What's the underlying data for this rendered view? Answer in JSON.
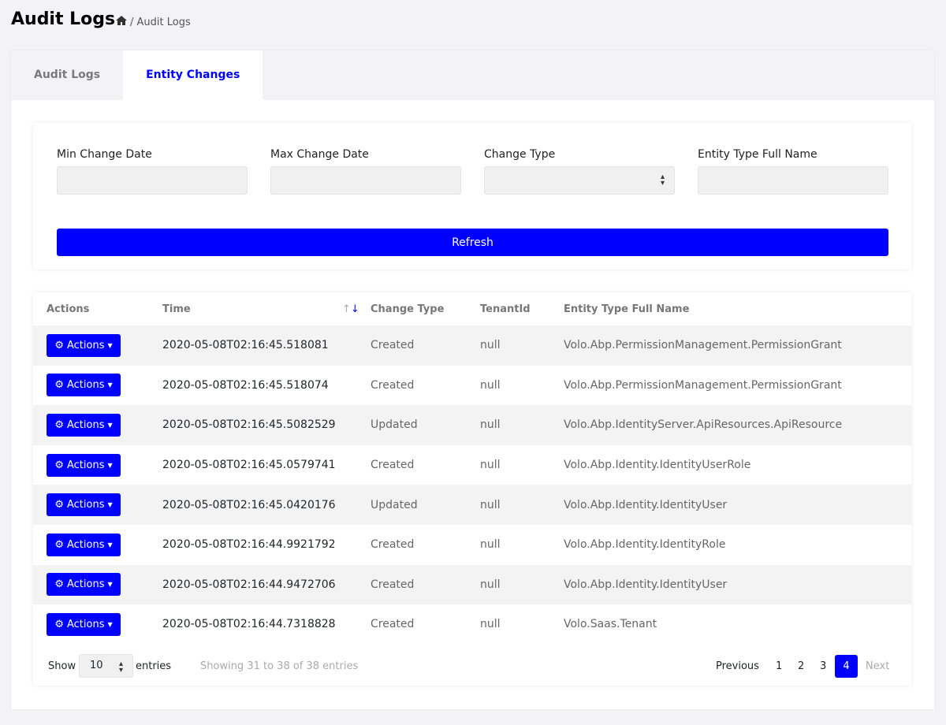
{
  "header": {
    "title": "Audit Logs",
    "breadcrumb": "/ Audit Logs"
  },
  "tabs": [
    {
      "label": "Audit Logs",
      "active": false
    },
    {
      "label": "Entity Changes",
      "active": true
    }
  ],
  "filters": {
    "min_date": "Min Change Date",
    "max_date": "Max Change Date",
    "change_type": "Change Type",
    "entity_type": "Entity Type Full Name",
    "refresh": "Refresh"
  },
  "table": {
    "columns": [
      "Actions",
      "Time",
      "Change Type",
      "TenantId",
      "Entity Type Full Name"
    ],
    "action_label": "Actions",
    "rows": [
      {
        "time": "2020-05-08T02:16:45.518081",
        "type": "Created",
        "tenant": "null",
        "entity": "Volo.Abp.PermissionManagement.PermissionGrant"
      },
      {
        "time": "2020-05-08T02:16:45.518074",
        "type": "Created",
        "tenant": "null",
        "entity": "Volo.Abp.PermissionManagement.PermissionGrant"
      },
      {
        "time": "2020-05-08T02:16:45.5082529",
        "type": "Updated",
        "tenant": "null",
        "entity": "Volo.Abp.IdentityServer.ApiResources.ApiResource"
      },
      {
        "time": "2020-05-08T02:16:45.0579741",
        "type": "Created",
        "tenant": "null",
        "entity": "Volo.Abp.Identity.IdentityUserRole"
      },
      {
        "time": "2020-05-08T02:16:45.0420176",
        "type": "Updated",
        "tenant": "null",
        "entity": "Volo.Abp.Identity.IdentityUser"
      },
      {
        "time": "2020-05-08T02:16:44.9921792",
        "type": "Created",
        "tenant": "null",
        "entity": "Volo.Abp.Identity.IdentityRole"
      },
      {
        "time": "2020-05-08T02:16:44.9472706",
        "type": "Created",
        "tenant": "null",
        "entity": "Volo.Abp.Identity.IdentityUser"
      },
      {
        "time": "2020-05-08T02:16:44.7318828",
        "type": "Created",
        "tenant": "null",
        "entity": "Volo.Saas.Tenant"
      }
    ]
  },
  "footer": {
    "show": "Show",
    "page_size": "10",
    "entries": "entries",
    "info": "Showing 31 to 38 of 38 entries",
    "previous": "Previous",
    "pages": [
      "1",
      "2",
      "3",
      "4"
    ],
    "current_page": "4",
    "next": "Next"
  },
  "colors": {
    "accent": "#0000ff"
  }
}
